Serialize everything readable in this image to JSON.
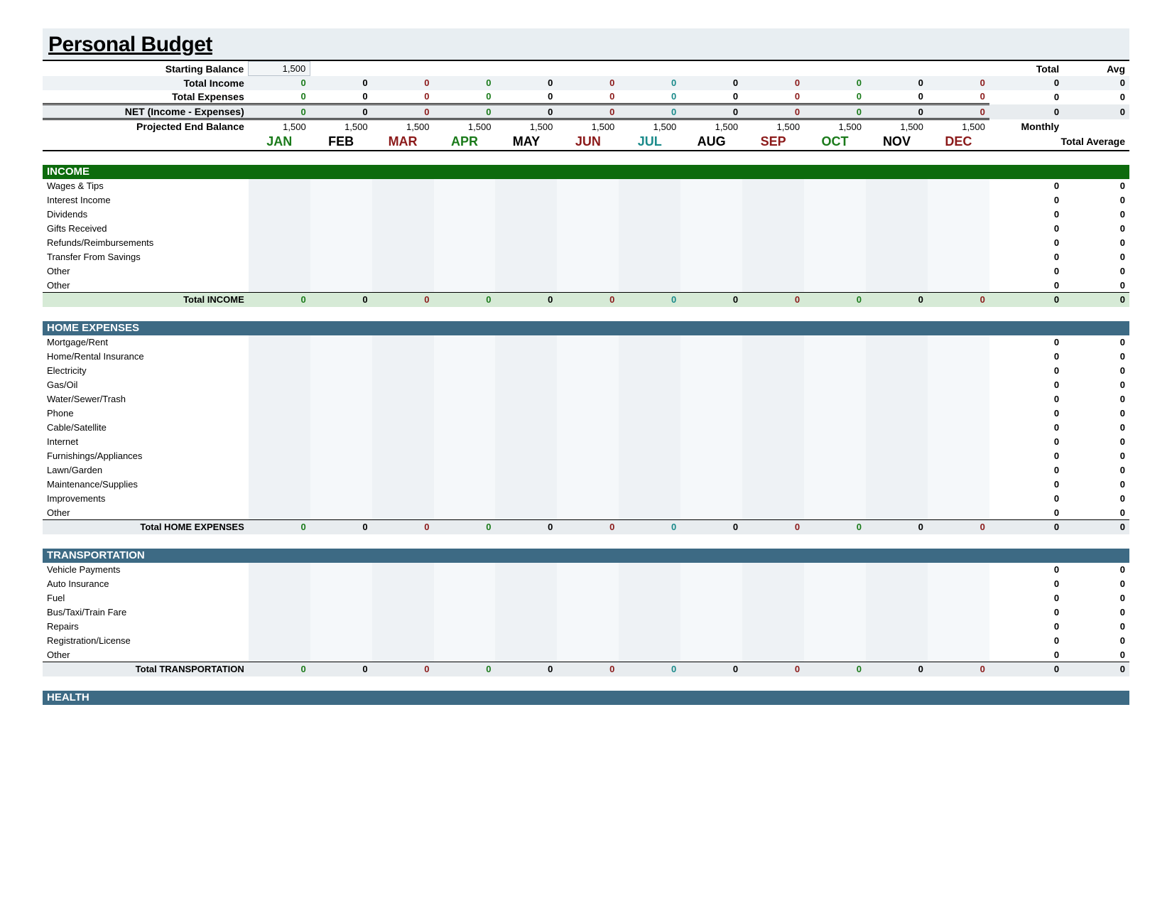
{
  "title": "Personal Budget",
  "months": [
    "JAN",
    "FEB",
    "MAR",
    "APR",
    "MAY",
    "JUN",
    "JUL",
    "AUG",
    "SEP",
    "OCT",
    "NOV",
    "DEC"
  ],
  "month_color_classes": [
    "mh-green",
    "mh-black",
    "mh-darkred",
    "mh-green",
    "mh-black",
    "mh-darkred",
    "mh-teal",
    "mh-black",
    "mh-darkred",
    "mh-green",
    "mh-black",
    "mh-darkred"
  ],
  "value_color_classes": [
    "tot-green",
    "tot-black",
    "tot-darkred",
    "tot-green",
    "tot-black",
    "tot-darkred",
    "tot-teal",
    "tot-black",
    "tot-darkred",
    "tot-green",
    "tot-black",
    "tot-darkred"
  ],
  "header_labels": {
    "total": "Total",
    "avg": "Avg",
    "monthly": "Monthly",
    "average": "Total Average"
  },
  "summary": {
    "starting_balance_label": "Starting Balance",
    "starting_balance": "1,500",
    "total_income_label": "Total Income",
    "total_income": [
      "0",
      "0",
      "0",
      "0",
      "0",
      "0",
      "0",
      "0",
      "0",
      "0",
      "0",
      "0"
    ],
    "total_income_total": "0",
    "total_income_avg": "0",
    "total_expenses_label": "Total Expenses",
    "total_expenses": [
      "0",
      "0",
      "0",
      "0",
      "0",
      "0",
      "0",
      "0",
      "0",
      "0",
      "0",
      "0"
    ],
    "total_expenses_total": "0",
    "total_expenses_avg": "0",
    "net_label": "NET (Income - Expenses)",
    "net": [
      "0",
      "0",
      "0",
      "0",
      "0",
      "0",
      "0",
      "0",
      "0",
      "0",
      "0",
      "0"
    ],
    "net_total": "0",
    "net_avg": "0",
    "proj_end_label": "Projected End Balance",
    "proj_end": [
      "1,500",
      "1,500",
      "1,500",
      "1,500",
      "1,500",
      "1,500",
      "1,500",
      "1,500",
      "1,500",
      "1,500",
      "1,500",
      "1,500"
    ]
  },
  "sections": [
    {
      "key": "income",
      "title": "INCOME",
      "style": "income",
      "rows": [
        {
          "label": "Wages & Tips",
          "total": "0",
          "avg": "0"
        },
        {
          "label": "Interest Income",
          "total": "0",
          "avg": "0"
        },
        {
          "label": "Dividends",
          "total": "0",
          "avg": "0"
        },
        {
          "label": "Gifts Received",
          "total": "0",
          "avg": "0"
        },
        {
          "label": "Refunds/Reimbursements",
          "total": "0",
          "avg": "0"
        },
        {
          "label": "Transfer From Savings",
          "total": "0",
          "avg": "0"
        },
        {
          "label": "Other",
          "total": "0",
          "avg": "0"
        },
        {
          "label": "Other",
          "total": "0",
          "avg": "0"
        }
      ],
      "subtotal_label": "Total INCOME",
      "subtotal": [
        "0",
        "0",
        "0",
        "0",
        "0",
        "0",
        "0",
        "0",
        "0",
        "0",
        "0",
        "0"
      ],
      "subtotal_total": "0",
      "subtotal_avg": "0"
    },
    {
      "key": "home",
      "title": "HOME EXPENSES",
      "style": "blue",
      "rows": [
        {
          "label": "Mortgage/Rent",
          "total": "0",
          "avg": "0"
        },
        {
          "label": "Home/Rental Insurance",
          "total": "0",
          "avg": "0"
        },
        {
          "label": "Electricity",
          "total": "0",
          "avg": "0"
        },
        {
          "label": "Gas/Oil",
          "total": "0",
          "avg": "0"
        },
        {
          "label": "Water/Sewer/Trash",
          "total": "0",
          "avg": "0"
        },
        {
          "label": "Phone",
          "total": "0",
          "avg": "0"
        },
        {
          "label": "Cable/Satellite",
          "total": "0",
          "avg": "0"
        },
        {
          "label": "Internet",
          "total": "0",
          "avg": "0"
        },
        {
          "label": "Furnishings/Appliances",
          "total": "0",
          "avg": "0"
        },
        {
          "label": "Lawn/Garden",
          "total": "0",
          "avg": "0"
        },
        {
          "label": "Maintenance/Supplies",
          "total": "0",
          "avg": "0"
        },
        {
          "label": "Improvements",
          "total": "0",
          "avg": "0"
        },
        {
          "label": "Other",
          "total": "0",
          "avg": "0"
        }
      ],
      "subtotal_label": "Total HOME EXPENSES",
      "subtotal": [
        "0",
        "0",
        "0",
        "0",
        "0",
        "0",
        "0",
        "0",
        "0",
        "0",
        "0",
        "0"
      ],
      "subtotal_total": "0",
      "subtotal_avg": "0"
    },
    {
      "key": "transport",
      "title": "TRANSPORTATION",
      "style": "blue",
      "rows": [
        {
          "label": "Vehicle Payments",
          "total": "0",
          "avg": "0"
        },
        {
          "label": "Auto Insurance",
          "total": "0",
          "avg": "0"
        },
        {
          "label": "Fuel",
          "total": "0",
          "avg": "0"
        },
        {
          "label": "Bus/Taxi/Train Fare",
          "total": "0",
          "avg": "0"
        },
        {
          "label": "Repairs",
          "total": "0",
          "avg": "0"
        },
        {
          "label": "Registration/License",
          "total": "0",
          "avg": "0"
        },
        {
          "label": "Other",
          "total": "0",
          "avg": "0"
        }
      ],
      "subtotal_label": "Total TRANSPORTATION",
      "subtotal": [
        "0",
        "0",
        "0",
        "0",
        "0",
        "0",
        "0",
        "0",
        "0",
        "0",
        "0",
        "0"
      ],
      "subtotal_total": "0",
      "subtotal_avg": "0"
    },
    {
      "key": "health",
      "title": "HEALTH",
      "style": "blue",
      "rows": [],
      "subtotal_label": null
    }
  ],
  "colors": {
    "title_bg": "#e8eef2",
    "income_header_bg": "#0d6b0d",
    "blue_header_bg": "#3d6a84",
    "income_subtotal_bg": "#d6ead6",
    "alt_row_bg": "#eef2f5",
    "grey_row_bg": "#e8ecef",
    "green_text": "#1a7a1a",
    "darkred_text": "#8b1a1a",
    "teal_text": "#1a8a8a"
  }
}
